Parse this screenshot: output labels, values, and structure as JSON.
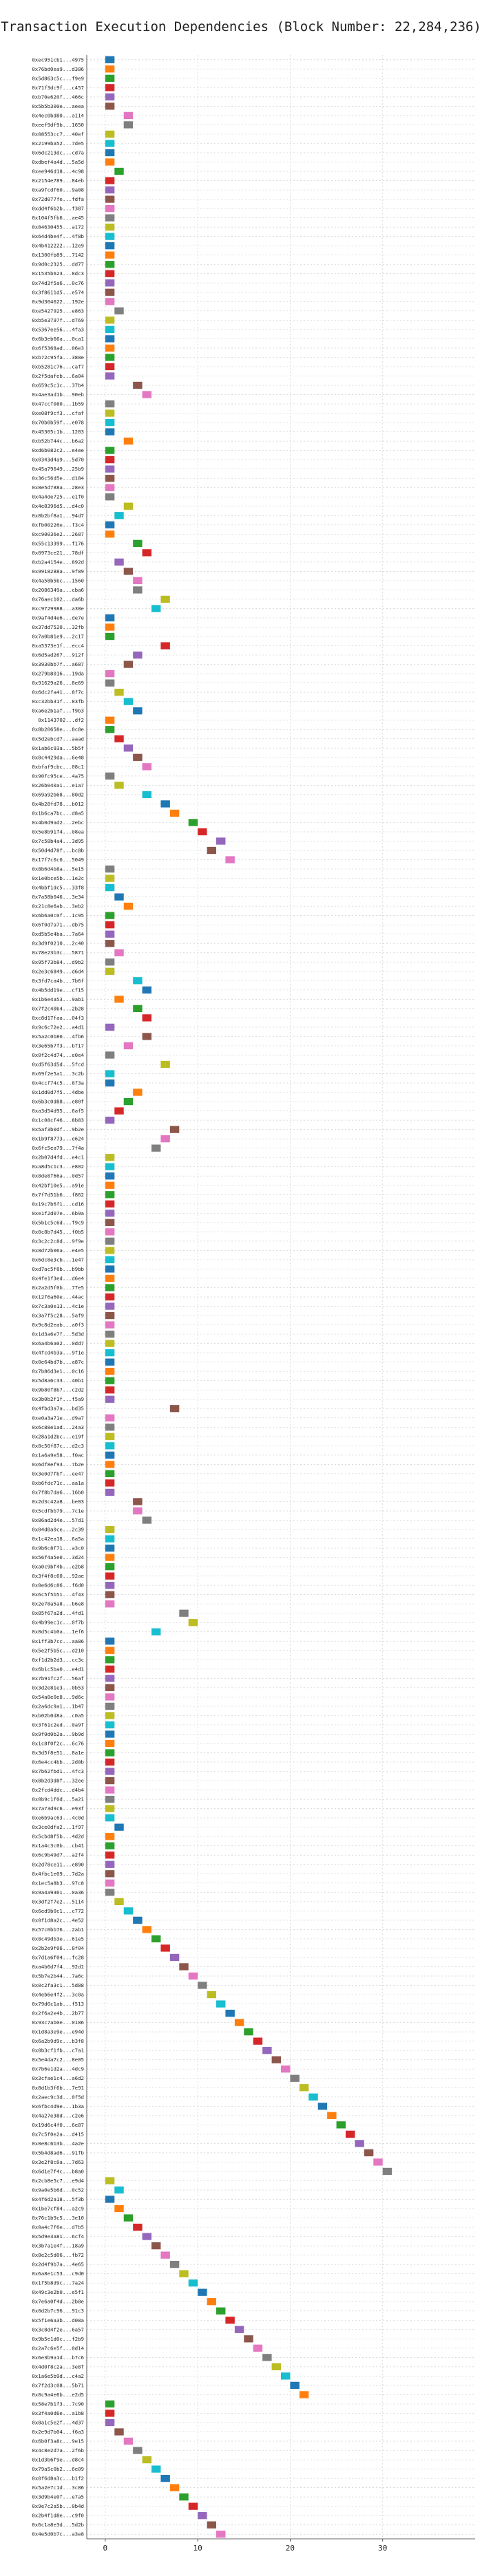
{
  "chart_data": {
    "type": "gantt",
    "title": "Transaction Execution Dependencies (Block Number: 22,284,236)",
    "xlabel": "",
    "ylabel": "",
    "xlim": [
      -2,
      40
    ],
    "x_ticks": [
      0,
      10,
      20,
      30
    ],
    "grid": true,
    "legend": "none",
    "palette": [
      "#1f77b4",
      "#ff7f0e",
      "#2ca02c",
      "#d62728",
      "#9467bd",
      "#8c564b",
      "#e377c2",
      "#7f7f7f",
      "#bcbd22",
      "#17becf"
    ],
    "transactions": [
      "0xec951cb1...4975",
      "0x76bd0ea9...d386",
      "0x5d863c5c...f9e9",
      "0x71f3dc9f...c457",
      "0xb70e620f...466c",
      "0x5b5b300e...aeea",
      "0x4ec0bd80...a114",
      "0xeef9df9b...1650",
      "0x08553cc7...40ef",
      "0x2199ba52...7de5",
      "0x6dc213dc...cd7a",
      "0xdbef4a4d...5a5d",
      "0xee946d18...4c98",
      "0x2154e789...84eb",
      "0xa9fcdf60...9a08",
      "0x72d077fe...fdfa",
      "0xdd4f6b2b...f387",
      "0x104f5fb6...ae45",
      "0x84630455...a172",
      "0x64d4be4f...4f8b",
      "0x4b412222...12e9",
      "0x1300fb89...7142",
      "0x9d0c2325...dd77",
      "0x1535b623...8dc3",
      "0x74d3f5a6...0c76",
      "0x3f8611d5...e574",
      "0x9d304622...192e",
      "0xe5427925...e863",
      "0xb5e3797f...d769",
      "0x5367ee56...4fa3",
      "0x6b3eb66a...0ca1",
      "0x6f5368ad...06e3",
      "0xb72c95fa...388e",
      "0xb5281c76...caf7",
      "0x2f5dafeb...6a04",
      "0x659c5c1c...37b4",
      "0x4ae3ad1b...90eb",
      "0x47ccf080...1b59",
      "0xe08f9cf3...cfaf",
      "0x70b0b59f...e078",
      "0x45305c1b...1203",
      "0xb52b744c...b6a2",
      "0xd6b082c2...e4ee",
      "0x0343d4a9...5d70",
      "0x45a79649...25b9",
      "0x36c56d5e...d184",
      "0x8e5d788a...28e3",
      "0x4a4de725...e1f0",
      "0x4e8396d5...d4c0",
      "0x0b2bf8a1...94d7",
      "0xfb00226e...f3c4",
      "0xc90036e2...2687",
      "0x55c13399...f176",
      "0x0973ce21...78df",
      "0xb2a4154e...892d",
      "0x9918288a...9f89",
      "0x4a58b5bc...1560",
      "0x2086349a...cba6",
      "0x76aec102...da6b",
      "0xc9729988...a38e",
      "0x9af4d4e6...de7e",
      "0x37dd7520...32fb",
      "0x7a0b81e9...2c17",
      "0xa5373e1f...ecc4",
      "0x6d5ad267...912f",
      "0x3930bb7f...a687",
      "0x279b8016...19da",
      "0x91629a26...8e69",
      "0x6dc2fa41...8f7c",
      "0xc32bb31f...83fb",
      "0xa6e2b1af...f9b3",
      "0x1143702...df2",
      "0x8b20658e...8c8e",
      "0x5d2ebcd7...aaad",
      "0x1ab6c93a...5b5f",
      "0x8c4429da...6e48",
      "0xbfaf9cbc...08c1",
      "0x90fc95ce...4a75",
      "0x26b040a1...e1a7",
      "0x69a92b68...80d2",
      "0x4b28fd78...b012",
      "0x1b6ca7bc...d8a5",
      "0x4b0d9ad2...2ebc",
      "0x5e8b91f4...08ea",
      "0x7c58b4a4...3d95",
      "0x50d4d78f...bc8b",
      "0x17f7c0c0...5049",
      "0x8b6d4b8a...5e15",
      "0x1e0bce5b...1e2c",
      "0x4bbf1dc5...33f8",
      "0x7a58b046...3e34",
      "0x21c8e6ab...3eb2",
      "0x6b6a0c0f...1c95",
      "0x6f0d7a71...db75",
      "0xd5b5e4ba...7a64",
      "0x3d9f0210...2c40",
      "0x78e23b3c...5871",
      "0x95f73b84...d9b2",
      "0x2e3c6849...d6d4",
      "0x3fd7ca4b...7b6f",
      "0x4b5dd19e...cf15",
      "0x1b6e4a53...9ab1",
      "0x7f2c40b4...2b28",
      "0xc8d17faa...04f3",
      "0x9c6c72e2...a4d1",
      "0x5a2c0b80...4fb6",
      "0x3e65b7f3...bf17",
      "0x0f2c4d74...e0e4",
      "0xd5f63d5d...5fcd",
      "0x69f2e5a1...3c2b",
      "0x4ccf74c5...8f3a",
      "0x1dd0d7f5...4dbe",
      "0x6b3c0d88...e80f",
      "0xa3d54d95...6af5",
      "0x1c08cf46...8b83",
      "0x5af3b0df...9b2e",
      "0x1b9f8773...e624",
      "0x6fc5ea79...7f4a",
      "0x2b07d4fd...e4c1",
      "0xa8d5c1c3...e802",
      "0x8de8f66a...0d57",
      "0x42bf10e5...a91e",
      "0x7f7d51b6...f862",
      "0x19c7b6f1...cd16",
      "0xe1f2d07e...6b9a",
      "0x5b1c5c6d...f9c9",
      "0x0c8b7d45...f0b5",
      "0x3c2c2c8d...9f9e",
      "0x8d72b06a...e4e5",
      "0x6dc8e3cb...1e47",
      "0xd7ac5f8b...b9bb",
      "0x4fe1f3ed...d6e4",
      "0x2a2d5f0b...77e5",
      "0x12f6a60e...44ac",
      "0x7c3a0e13...4c1e",
      "0x3a7f5c28...5af9",
      "0x9c8d2eab...a0f3",
      "0x1d3a6e7f...5d3d",
      "0x6a4b6a02...0dd7",
      "0x4fcd4b3a...9f1e",
      "0x0e64bd7b...a87c",
      "0x7b86d3e1...0c16",
      "0x5d8a6c33...40b1",
      "0x9b80f8b7...c2d2",
      "0x3b0b2f1f...f5a9",
      "0x4fbd3a7a...bd35",
      "0xe0a3a71e...d9a7",
      "0x6c88e1ad...24a3",
      "0x28a1d2bc...e19f",
      "0x8c50f87c...d2c3",
      "0x1a6a9e58...f0ac",
      "0x6df8ef93...7b2e",
      "0x3e0d7fbf...ee47",
      "0xb6fdc71c...aa1a",
      "0x7f8b7da6...16b0",
      "0x2d3c42a8...be03",
      "0x5cdfbb79...7c1e",
      "0x86ad2d4e...57d1",
      "0x04d0a0ce...2c39",
      "0x1c42ea18...6a5a",
      "0x9b6c8f71...a3c0",
      "0x56f4a5e0...3d24",
      "0xa0c9bf4b...e2b8",
      "0x3f4f8c60...92ae",
      "0x0e6d6c86...f6d0",
      "0x6c5f5b51...4f43",
      "0x2e78a5a8...b6e8",
      "0x85f67a2d...4fd1",
      "0x4b99ec1c...0f7b",
      "0x0d5c4b0a...1ef6",
      "0x1ff3b7cc...aa86",
      "0x5e2f5b5c...d210",
      "0xf1d2b2d3...cc3c",
      "0x6b1c5ba0...e4d1",
      "0x7b91fc2f...56af",
      "0x3d2e81e3...0b53",
      "0x54a8e0e8...9d6c",
      "0x2a6dc9a1...1b47",
      "0xb02b0d8a...c0a5",
      "0x3f61c2ed...0a9f",
      "0x9f0d0b2a...9b9d",
      "0x1c8f0f2c...6c76",
      "0x3d5f8e51...8a1e",
      "0x6e4cc4bb...2d0b",
      "0x7b62fbd1...4fc3",
      "0x8b2d3d8f...32ee",
      "0x2fcd4ddc...d4b4",
      "0x0b9c1f0d...5a21",
      "0x7a73d9c6...e93f",
      "0xe6b9ac63...4c0d",
      "0x3ce0dfa2...1f97",
      "0x5cbd8f5b...4d2d",
      "0x1a4c3c0b...cb41",
      "0x6c9b49d7...a2f4",
      "0x2d78ce11...e890",
      "0x4fbc1e09...7d2a",
      "0x1ec5a8b3...97c8",
      "0x9a4a9361...0a36",
      "0x3df2f7e2...5114",
      "0x6ed9b0c1...c772",
      "0x0f1d8a2c...4e52",
      "0x57c0bb76...2ab1",
      "0x8c49db3e...61e5",
      "0x2b2e9f06...8f04",
      "0x7d1a6f04...fc28",
      "0xa4b6d7f4...92d1",
      "0x5b7e2b44...7a6c",
      "0x0c2fa3c1...5d88",
      "0x4eb6e4f2...3c0a",
      "0x79d0c1ab...f513",
      "0x2f6a2e4b...2b77",
      "0x93c7ab0e...0186",
      "0x1d8a3e9e...e94d",
      "0x6a2b9d9c...b3f8",
      "0x0b3cf1fb...c7a1",
      "0x5e4da7c2...8e05",
      "0x7b6e1d2a...4dc9",
      "0x3cfae1c4...a6d2",
      "0x8d1b3f6b...7e91",
      "0x2aec9c3d...0f5d",
      "0x6fbc4d9e...1b3a",
      "0x4a27e38d...c2e6",
      "0x19d6c4f0...6e87",
      "0x7c5f0e2a...d415",
      "0x0e8c6b3b...4a2e",
      "0x5b4d8ad6...91fb",
      "0x3e2f8c0a...7d63",
      "0x6d1e7f4c...b8a0",
      "0x2cb8e5c7...e9d4",
      "0x9a0e5b6d...0c52",
      "0x4f6d2a18...5f3b",
      "0x1be7cf84...a2c9",
      "0x76c1b9c5...3e10",
      "0x0a4c7f6e...d7b5",
      "0x5d9e3a81...6cf4",
      "0x3b7a1e4f...18a9",
      "0x8e2c5d06...fb72",
      "0x2d4f9b7a...4e65",
      "0x6a8e1c53...c9d0",
      "0x1f5b8d9c...7a24",
      "0x49c3e2b0...e5f1",
      "0x7e6a0f4d...2b8e",
      "0x0d2b7c96...91c3",
      "0x5f1e6a3b...d08a",
      "0x3c8d4f2e...6a57",
      "0x9b5e1d0c...f2b9",
      "0x2a7c6e5f...0d14",
      "0x6e3b9a1d...b7c6",
      "0x4d0f8c2a...3e8f",
      "0x1a6e5b9d...c4a2",
      "0x7f2d3c08...5b71",
      "0x0c9a4e6b...e2d5",
      "0x58e7b1f3...7c90",
      "0x3f4a0d6e...a1b8",
      "0x8a1c5e2f...4d37",
      "0x2e9d7b04...f6a3",
      "0x6b0f3a8c...9e15",
      "0x4c8e2d7a...2f6b",
      "0x1d3b6f9e...d8c4",
      "0x79a5c0b2...6e09",
      "0x0f6d8a3c...b1f2",
      "0x5a2e7c1d...3c86",
      "0x3d9b4e0f...e7a5",
      "0x9e7c2a5b...0b4d",
      "0x2b4f1d8e...c9f0",
      "0x6c1a8e3d...5d2b",
      "0x4e5d0b7c...a3e8"
    ],
    "starts": [
      0,
      0,
      0,
      0,
      0,
      0,
      2,
      2,
      0,
      0,
      0,
      0,
      1,
      0,
      0,
      0,
      0,
      0,
      0,
      0,
      0,
      0,
      0,
      0,
      0,
      0,
      0,
      1,
      0,
      0,
      0,
      0,
      0,
      0,
      0,
      3,
      4,
      0,
      0,
      0,
      0,
      2,
      0,
      0,
      0,
      0,
      0,
      0,
      2,
      1,
      0,
      0,
      3,
      4,
      1,
      2,
      3,
      3,
      6,
      5,
      0,
      0,
      0,
      6,
      3,
      2,
      0,
      0,
      1,
      2,
      3,
      0,
      0,
      1,
      2,
      3,
      4,
      0,
      1,
      4,
      6,
      7,
      9,
      10,
      12,
      11,
      13,
      0,
      0,
      0,
      1,
      2,
      0,
      0,
      0,
      0,
      1,
      0,
      0,
      3,
      4,
      1,
      3,
      4,
      0,
      4,
      2,
      0,
      6,
      0,
      0,
      3,
      2,
      1,
      0,
      7,
      6,
      5,
      0,
      0,
      0,
      0,
      0,
      0,
      0,
      0,
      0,
      0,
      0,
      0,
      0,
      0,
      0,
      0,
      0,
      0,
      0,
      0,
      0,
      0,
      0,
      0,
      0,
      0,
      0,
      7,
      0,
      0,
      0,
      0,
      0,
      0,
      0,
      0,
      0,
      3,
      3,
      4,
      0,
      0,
      0,
      0,
      0,
      0,
      0,
      0,
      0,
      8,
      9,
      5,
      0,
      0,
      0,
      0,
      0,
      0,
      0,
      0,
      0,
      0,
      0,
      0,
      0,
      0,
      0,
      0,
      0,
      0,
      0,
      0,
      1,
      0,
      0,
      0,
      0,
      0,
      0,
      0,
      1,
      2,
      3,
      4,
      5,
      6,
      7,
      8,
      9,
      10,
      11,
      12,
      13,
      14,
      15,
      16,
      17,
      18,
      19,
      20,
      21,
      22,
      23,
      24,
      25,
      26,
      27,
      28,
      29,
      30,
      0,
      1,
      0,
      1,
      2,
      3,
      4,
      5,
      6,
      7,
      8,
      9,
      10,
      11,
      12,
      13,
      14,
      15,
      16,
      17,
      18,
      19,
      20,
      21,
      0,
      0,
      0,
      1,
      2,
      3,
      4,
      5,
      6,
      7,
      8,
      9,
      10,
      11,
      12,
      13,
      14,
      15,
      16,
      17,
      18,
      19,
      20,
      21,
      22,
      23,
      24,
      25,
      26,
      27,
      28,
      29,
      30,
      31,
      32,
      33,
      34,
      35,
      0,
      1,
      2,
      3,
      4,
      5,
      6,
      7,
      8,
      9,
      10
    ],
    "durations": 1,
    "colors": [
      0,
      1,
      2,
      3,
      4,
      5,
      6,
      7,
      8,
      9
    ]
  }
}
